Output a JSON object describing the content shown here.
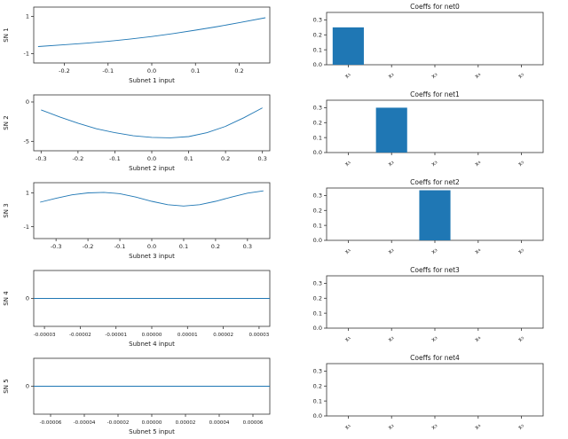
{
  "figure": {
    "background": "#ffffff",
    "accent": "#1f77b4",
    "axis_color": "#333333",
    "text_color": "#1a1a1a"
  },
  "chart_data": [
    {
      "id": "sn1",
      "type": "line",
      "title": "",
      "xlabel": "Subnet 1 input",
      "ylabel": "SN 1",
      "xlim": [
        -0.27,
        0.27
      ],
      "ylim": [
        -1.5,
        1.5
      ],
      "xticks": [
        {
          "v": -0.2,
          "label": "-0.2"
        },
        {
          "v": -0.1,
          "label": "-0.1"
        },
        {
          "v": 0.0,
          "label": "0.0"
        },
        {
          "v": 0.1,
          "label": "0.1"
        },
        {
          "v": 0.2,
          "label": "0.2"
        }
      ],
      "yticks": [
        {
          "v": 1,
          "label": "1"
        },
        {
          "v": -1,
          "label": "-1"
        }
      ],
      "x": [
        -0.26,
        -0.2,
        -0.15,
        -0.1,
        -0.05,
        0.0,
        0.05,
        0.1,
        0.15,
        0.2,
        0.26
      ],
      "y": [
        -0.62,
        -0.52,
        -0.44,
        -0.34,
        -0.22,
        -0.08,
        0.08,
        0.26,
        0.45,
        0.66,
        0.93
      ]
    },
    {
      "id": "sn2",
      "type": "line",
      "title": "",
      "xlabel": "Subnet 2 input",
      "ylabel": "SN 2",
      "xlim": [
        -0.32,
        0.32
      ],
      "ylim": [
        -6.2,
        0.9
      ],
      "xticks": [
        {
          "v": -0.3,
          "label": "-0.3"
        },
        {
          "v": -0.2,
          "label": "-0.2"
        },
        {
          "v": -0.1,
          "label": "-0.1"
        },
        {
          "v": 0.0,
          "label": "0.0"
        },
        {
          "v": 0.1,
          "label": "0.1"
        },
        {
          "v": 0.2,
          "label": "0.2"
        },
        {
          "v": 0.3,
          "label": "0.3"
        }
      ],
      "yticks": [
        {
          "v": 0,
          "label": "0"
        },
        {
          "v": -5,
          "label": "-5"
        }
      ],
      "x": [
        -0.3,
        -0.25,
        -0.2,
        -0.15,
        -0.1,
        -0.05,
        0.0,
        0.05,
        0.1,
        0.15,
        0.2,
        0.25,
        0.3
      ],
      "y": [
        -1.0,
        -1.9,
        -2.7,
        -3.4,
        -3.9,
        -4.3,
        -4.5,
        -4.55,
        -4.4,
        -3.9,
        -3.1,
        -2.0,
        -0.75
      ]
    },
    {
      "id": "sn3",
      "type": "line",
      "title": "",
      "xlabel": "Subnet 3 input",
      "ylabel": "SN 3",
      "xlim": [
        -0.37,
        0.37
      ],
      "ylim": [
        -1.7,
        1.6
      ],
      "xticks": [
        {
          "v": -0.3,
          "label": "-0.3"
        },
        {
          "v": -0.2,
          "label": "-0.2"
        },
        {
          "v": -0.1,
          "label": "-0.1"
        },
        {
          "v": 0.0,
          "label": "0.0"
        },
        {
          "v": 0.1,
          "label": "0.1"
        },
        {
          "v": 0.2,
          "label": "0.2"
        },
        {
          "v": 0.3,
          "label": "0.3"
        }
      ],
      "yticks": [
        {
          "v": 1,
          "label": "1"
        },
        {
          "v": -1,
          "label": "-1"
        }
      ],
      "x": [
        -0.35,
        -0.3,
        -0.25,
        -0.2,
        -0.15,
        -0.1,
        -0.05,
        0.0,
        0.05,
        0.1,
        0.15,
        0.2,
        0.25,
        0.3,
        0.35
      ],
      "y": [
        0.45,
        0.68,
        0.88,
        1.0,
        1.03,
        0.95,
        0.75,
        0.5,
        0.3,
        0.22,
        0.3,
        0.5,
        0.75,
        0.98,
        1.12
      ]
    },
    {
      "id": "sn4",
      "type": "line",
      "title": "",
      "xlabel": "Subnet 4 input",
      "ylabel": "SN 4",
      "xlim": [
        -3.3e-05,
        3.3e-05
      ],
      "ylim": [
        -1,
        1
      ],
      "xticks": [
        {
          "v": -3e-05,
          "label": "-0.00003"
        },
        {
          "v": -2e-05,
          "label": "-0.00002"
        },
        {
          "v": -1e-05,
          "label": "-0.00001"
        },
        {
          "v": 0.0,
          "label": "0.00000"
        },
        {
          "v": 1e-05,
          "label": "0.00001"
        },
        {
          "v": 2e-05,
          "label": "0.00002"
        },
        {
          "v": 3e-05,
          "label": "0.00003"
        }
      ],
      "yticks": [
        {
          "v": 0,
          "label": "0"
        }
      ],
      "x": [
        -3.3e-05,
        3.3e-05
      ],
      "y": [
        0,
        0
      ]
    },
    {
      "id": "sn5",
      "type": "line",
      "title": "",
      "xlabel": "Subnet 5 input",
      "ylabel": "SN 5",
      "xlim": [
        -7e-05,
        7e-05
      ],
      "ylim": [
        -1,
        1
      ],
      "xticks": [
        {
          "v": -6e-05,
          "label": "-0.00006"
        },
        {
          "v": -4e-05,
          "label": "-0.00004"
        },
        {
          "v": -2e-05,
          "label": "-0.00002"
        },
        {
          "v": 0.0,
          "label": "0.00000"
        },
        {
          "v": 2e-05,
          "label": "0.00002"
        },
        {
          "v": 4e-05,
          "label": "0.00004"
        },
        {
          "v": 6e-05,
          "label": "0.00006"
        }
      ],
      "yticks": [
        {
          "v": 0,
          "label": "0"
        }
      ],
      "x": [
        -7e-05,
        7e-05
      ],
      "y": [
        0,
        0
      ]
    },
    {
      "id": "net0",
      "type": "bar",
      "title": "Coeffs for net0",
      "categories": [
        "x₁",
        "x₂",
        "x₃",
        "x₄",
        "x₅"
      ],
      "values": [
        0.25,
        0,
        0,
        0,
        0
      ],
      "ylim": [
        0,
        0.35
      ],
      "yticks": [
        {
          "v": 0.0,
          "label": "0.0"
        },
        {
          "v": 0.1,
          "label": "0.1"
        },
        {
          "v": 0.2,
          "label": "0.2"
        },
        {
          "v": 0.3,
          "label": "0.3"
        }
      ]
    },
    {
      "id": "net1",
      "type": "bar",
      "title": "Coeffs for net1",
      "categories": [
        "x₁",
        "x₂",
        "x₃",
        "x₄",
        "x₅"
      ],
      "values": [
        0,
        0.3,
        0,
        0,
        0
      ],
      "ylim": [
        0,
        0.35
      ],
      "yticks": [
        {
          "v": 0.0,
          "label": "0.0"
        },
        {
          "v": 0.1,
          "label": "0.1"
        },
        {
          "v": 0.2,
          "label": "0.2"
        },
        {
          "v": 0.3,
          "label": "0.3"
        }
      ]
    },
    {
      "id": "net2",
      "type": "bar",
      "title": "Coeffs for net2",
      "categories": [
        "x₁",
        "x₂",
        "x₃",
        "x₄",
        "x₅"
      ],
      "values": [
        0,
        0,
        0.335,
        0,
        0
      ],
      "ylim": [
        0,
        0.35
      ],
      "yticks": [
        {
          "v": 0.0,
          "label": "0.0"
        },
        {
          "v": 0.1,
          "label": "0.1"
        },
        {
          "v": 0.2,
          "label": "0.2"
        },
        {
          "v": 0.3,
          "label": "0.3"
        }
      ]
    },
    {
      "id": "net3",
      "type": "bar",
      "title": "Coeffs for net3",
      "categories": [
        "x₁",
        "x₂",
        "x₃",
        "x₄",
        "x₅"
      ],
      "values": [
        0,
        0,
        0,
        0,
        0
      ],
      "ylim": [
        0,
        0.35
      ],
      "yticks": [
        {
          "v": 0.0,
          "label": "0.0"
        },
        {
          "v": 0.1,
          "label": "0.1"
        },
        {
          "v": 0.2,
          "label": "0.2"
        },
        {
          "v": 0.3,
          "label": "0.3"
        }
      ]
    },
    {
      "id": "net4",
      "type": "bar",
      "title": "Coeffs for net4",
      "categories": [
        "x₁",
        "x₂",
        "x₃",
        "x₄",
        "x₅"
      ],
      "values": [
        0,
        0,
        0,
        0,
        0
      ],
      "ylim": [
        0,
        0.35
      ],
      "yticks": [
        {
          "v": 0.0,
          "label": "0.0"
        },
        {
          "v": 0.1,
          "label": "0.1"
        },
        {
          "v": 0.2,
          "label": "0.2"
        },
        {
          "v": 0.3,
          "label": "0.3"
        }
      ]
    }
  ]
}
